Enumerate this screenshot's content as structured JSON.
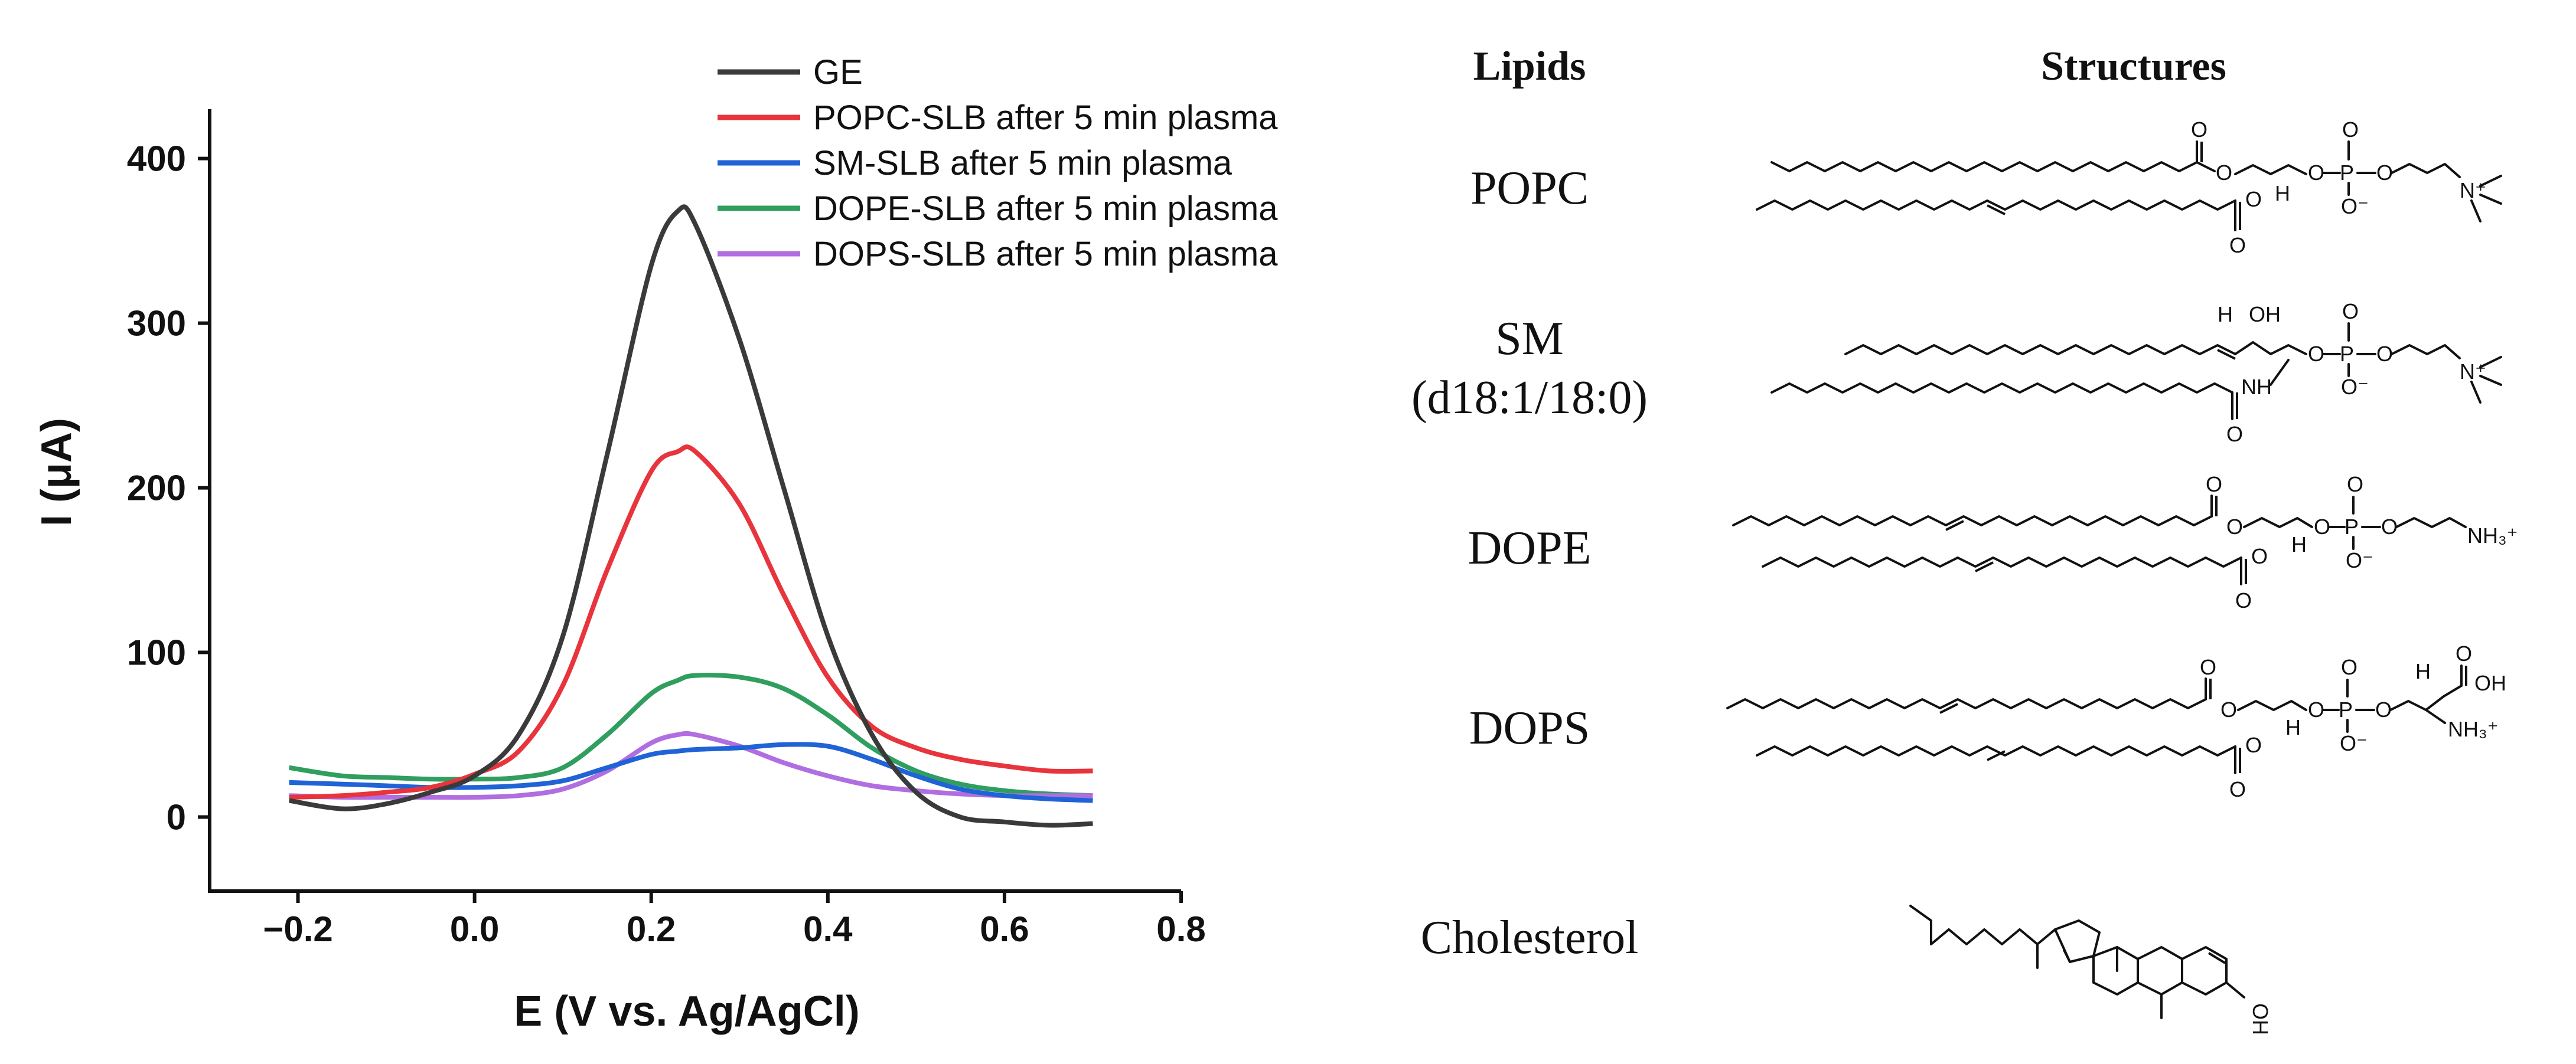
{
  "chart_data": {
    "type": "line",
    "xlabel": "E (V vs. Ag/AgCl)",
    "ylabel": "I (μA)",
    "xlim": [
      -0.3,
      0.8
    ],
    "ylim": [
      -45,
      430
    ],
    "xticks": [
      -0.2,
      0.0,
      0.2,
      0.4,
      0.6,
      0.8
    ],
    "xtick_labels": [
      "−0.2",
      "0.0",
      "0.2",
      "0.4",
      "0.6",
      "0.8"
    ],
    "yticks": [
      0,
      100,
      200,
      300,
      400
    ],
    "ytick_labels": [
      "0",
      "100",
      "200",
      "300",
      "400"
    ],
    "grid": false,
    "legend_position": "top-right",
    "x": [
      -0.21,
      -0.15,
      -0.1,
      -0.05,
      0.0,
      0.05,
      0.1,
      0.15,
      0.2,
      0.23,
      0.25,
      0.3,
      0.35,
      0.4,
      0.45,
      0.5,
      0.55,
      0.6,
      0.65,
      0.7
    ],
    "series": [
      {
        "name": "GE",
        "color": "#3a3a3a",
        "values": [
          10,
          5,
          8,
          15,
          25,
          50,
          110,
          220,
          335,
          368,
          360,
          290,
          200,
          110,
          50,
          15,
          0,
          -3,
          -5,
          -4
        ]
      },
      {
        "name": "POPC-SLB after 5 min plasma",
        "color": "#e8343c",
        "values": [
          12,
          13,
          15,
          18,
          26,
          40,
          80,
          150,
          210,
          222,
          222,
          190,
          135,
          85,
          55,
          42,
          35,
          31,
          28,
          28
        ]
      },
      {
        "name": "SM-SLB after 5 min plasma",
        "color": "#1f63d6",
        "values": [
          21,
          20,
          19,
          18,
          18,
          19,
          22,
          30,
          38,
          40,
          41,
          42,
          44,
          43,
          35,
          25,
          17,
          13,
          11,
          10
        ]
      },
      {
        "name": "DOPE-SLB after 5 min plasma",
        "color": "#2f9e5e",
        "values": [
          30,
          25,
          24,
          23,
          23,
          24,
          30,
          50,
          75,
          83,
          86,
          85,
          78,
          62,
          42,
          28,
          20,
          16,
          14,
          13
        ]
      },
      {
        "name": "DOPS-SLB after 5 min plasma",
        "color": "#b06ee0",
        "values": [
          13,
          12,
          12,
          12,
          12,
          13,
          17,
          28,
          45,
          50,
          50,
          43,
          33,
          25,
          19,
          16,
          14,
          13,
          13,
          13
        ]
      }
    ]
  },
  "table": {
    "header_lipids": "Lipids",
    "header_structures": "Structures",
    "rows": [
      {
        "name": "POPC"
      },
      {
        "name": "SM",
        "subname": "(d18:1/18:0)"
      },
      {
        "name": "DOPE"
      },
      {
        "name": "DOPS"
      },
      {
        "name": "Cholesterol"
      }
    ]
  },
  "atoms": {
    "O": "O",
    "O_minus": "O⁻",
    "P": "P",
    "N_plus": "N⁺",
    "H": "H",
    "OH": "OH",
    "NH": "NH",
    "NH3_plus": "NH₃⁺"
  }
}
